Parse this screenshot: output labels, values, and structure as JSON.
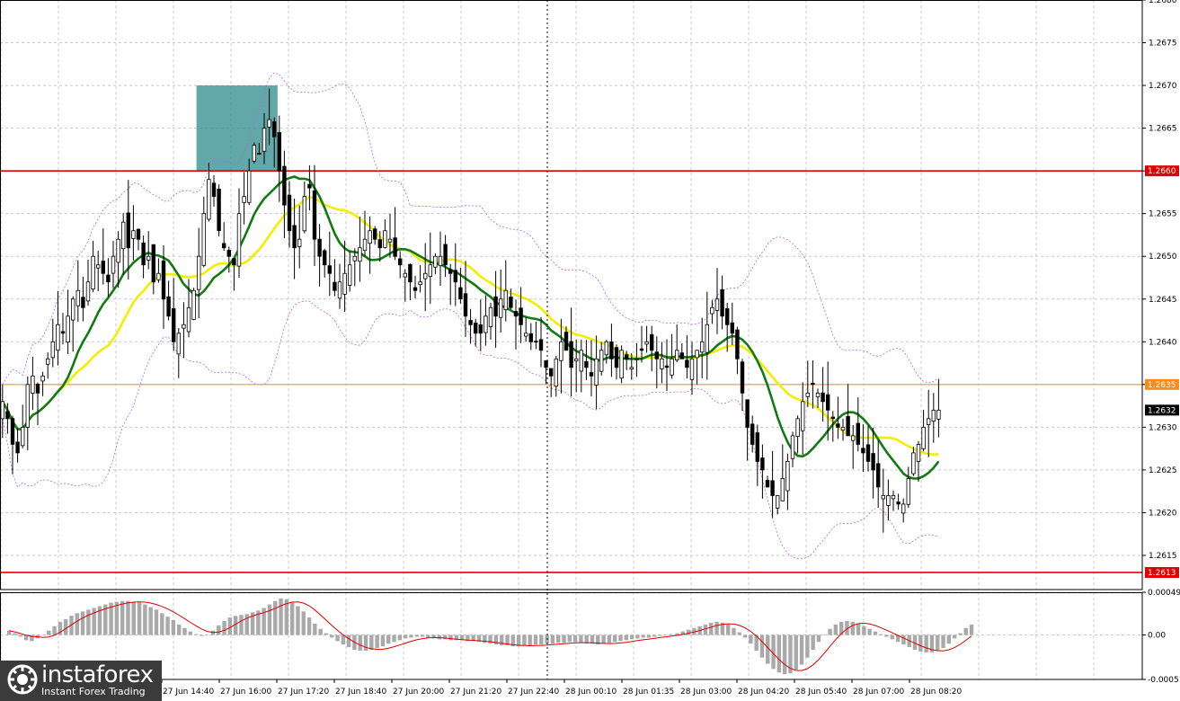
{
  "chart_data": [
    {
      "type": "candlestick",
      "title": "",
      "ylim": [
        1.2611,
        1.268
      ],
      "y_ticks": [
        "1.2680",
        "1.2675",
        "1.2670",
        "1.2665",
        "1.2660",
        "1.2655",
        "1.2650",
        "1.2645",
        "1.2640",
        "1.2635",
        "1.2630",
        "1.2625",
        "1.2620",
        "1.2615"
      ],
      "x_tick_labels": [
        "27 Jun 14:40",
        "27 Jun 16:00",
        "27 Jun 17:20",
        "27 Jun 18:40",
        "27 Jun 20:00",
        "27 Jun 21:20",
        "27 Jun 22:40",
        "28 Jun 00:10",
        "28 Jun 01:35",
        "28 Jun 03:00",
        "28 Jun 04:20",
        "28 Jun 05:40",
        "28 Jun 07:00",
        "28 Jun 08:20"
      ],
      "grid": true,
      "horizontal_levels": [
        {
          "value": 1.266,
          "label": "1.2660",
          "color": "#e00000"
        },
        {
          "value": 1.2613,
          "label": "1.2613",
          "color": "#e00000"
        },
        {
          "value": 1.2635,
          "label": "1.2635",
          "color": "#ff8c1a"
        }
      ],
      "current_price": {
        "value": 1.2632,
        "label": "1.2632"
      },
      "highlight_zone": {
        "x_from": 0.172,
        "x_to": 0.243,
        "y_from": 1.266,
        "y_to": 1.267,
        "color": "#2e8b8b"
      },
      "close": [
        1.2633,
        1.2631,
        1.2628,
        1.2627,
        1.263,
        1.2635,
        1.2636,
        1.2634,
        1.2636,
        1.2638,
        1.264,
        1.2642,
        1.2641,
        1.2643,
        1.2645,
        1.2646,
        1.2644,
        1.2647,
        1.265,
        1.2649,
        1.2648,
        1.2647,
        1.265,
        1.2652,
        1.2654,
        1.2651,
        1.2653,
        1.2652,
        1.2649,
        1.265,
        1.2647,
        1.2648,
        1.2645,
        1.2643,
        1.264,
        1.2641,
        1.2642,
        1.2644,
        1.2646,
        1.265,
        1.2655,
        1.2659,
        1.2657,
        1.2653,
        1.2651,
        1.265,
        1.2649,
        1.2655,
        1.2657,
        1.266,
        1.2663,
        1.2662,
        1.2665,
        1.2666,
        1.2664,
        1.266,
        1.2656,
        1.2653,
        1.2651,
        1.2652,
        1.2657,
        1.2658,
        1.2652,
        1.265,
        1.2649,
        1.2648,
        1.2646,
        1.2647,
        1.2648,
        1.2649,
        1.265,
        1.2651,
        1.2652,
        1.2653,
        1.2652,
        1.2651,
        1.2653,
        1.2652,
        1.265,
        1.2649,
        1.2648,
        1.2647,
        1.2646,
        1.2647,
        1.2648,
        1.2649,
        1.265,
        1.265,
        1.2649,
        1.2648,
        1.2647,
        1.2645,
        1.2643,
        1.2642,
        1.2641,
        1.2641,
        1.2643,
        1.2644,
        1.2643,
        1.2645,
        1.2646,
        1.2644,
        1.2643,
        1.2642,
        1.2641,
        1.264,
        1.264,
        1.2639,
        1.2637,
        1.2636,
        1.2638,
        1.264,
        1.2639,
        1.2637,
        1.2638,
        1.2639,
        1.2637,
        1.2636,
        1.2638,
        1.2639,
        1.264,
        1.2638,
        1.2637,
        1.2639,
        1.2638,
        1.2637,
        1.2638,
        1.2639,
        1.264,
        1.2639,
        1.2638,
        1.2638,
        1.2637,
        1.2638,
        1.2639,
        1.2638,
        1.2637,
        1.2638,
        1.2639,
        1.264,
        1.2642,
        1.2644,
        1.2645,
        1.2643,
        1.2642,
        1.2641,
        1.2638,
        1.2634,
        1.263,
        1.2628,
        1.2626,
        1.2625,
        1.2623,
        1.2622,
        1.2622,
        1.2624,
        1.2626,
        1.2629,
        1.2631,
        1.2633,
        1.2634,
        1.2635,
        1.2634,
        1.2633,
        1.2632,
        1.2631,
        1.263,
        1.263,
        1.2629,
        1.2629,
        1.2628,
        1.2627,
        1.2626,
        1.2625,
        1.2623,
        1.2622,
        1.2622,
        1.2622,
        1.2621,
        1.2621,
        1.2624,
        1.2627,
        1.2628,
        1.263,
        1.2631,
        1.2632,
        1.2632
      ]
    },
    {
      "type": "histogram",
      "title": "",
      "ylim": [
        -0.00051,
        0.00049
      ],
      "y_ticks": [
        "0.00049",
        "0.00",
        "-0.00051"
      ],
      "values": [
        5e-05,
        2e-05,
        -2e-05,
        -6e-05,
        -7e-05,
        -4e-05,
        0.0,
        5e-05,
        0.0001,
        0.00015,
        0.00018,
        0.00022,
        0.00025,
        0.00027,
        0.00029,
        0.00031,
        0.00033,
        0.00035,
        0.00037,
        0.00038,
        0.00039,
        0.00039,
        0.00038,
        0.00037,
        0.00035,
        0.00032,
        0.00029,
        0.00025,
        0.00021,
        0.00017,
        0.00012,
        8e-05,
        4e-05,
        1e-05,
        -1e-05,
        0.0,
        5e-05,
        0.00011,
        0.00016,
        0.0002,
        0.00022,
        0.00023,
        0.00024,
        0.00026,
        0.00028,
        0.00031,
        0.00035,
        0.00039,
        0.00042,
        0.00041,
        0.00038,
        0.00033,
        0.00027,
        0.0002,
        0.00013,
        7e-05,
        2e-05,
        -3e-05,
        -7e-05,
        -0.00011,
        -0.00014,
        -0.00017,
        -0.00018,
        -0.00018,
        -0.00017,
        -0.00015,
        -0.00013,
        -0.0001,
        -8e-05,
        -6e-05,
        -4e-05,
        -3e-05,
        -2e-05,
        -2e-05,
        -3e-05,
        -4e-05,
        -5e-05,
        -5e-05,
        -6e-05,
        -6e-05,
        -6e-05,
        -7e-05,
        -7e-05,
        -8e-05,
        -9e-05,
        -0.0001,
        -0.00011,
        -0.00012,
        -0.00012,
        -0.00013,
        -0.00013,
        -0.00012,
        -0.00012,
        -0.00011,
        -0.00011,
        -0.0001,
        -0.0001,
        -9e-05,
        -9e-05,
        -8e-05,
        -8e-05,
        -9e-05,
        -0.0001,
        -0.0001,
        -0.00011,
        -0.0001,
        -9e-05,
        -8e-05,
        -7e-05,
        -6e-05,
        -5e-05,
        -4e-05,
        -3e-05,
        -3e-05,
        -2e-05,
        -1e-05,
        0.0,
        1e-05,
        2e-05,
        4e-05,
        6e-05,
        8e-05,
        0.0001,
        0.00012,
        0.00014,
        0.00015,
        0.00014,
        0.00012,
        8e-05,
        3e-05,
        -3e-05,
        -0.0001,
        -0.00018,
        -0.00026,
        -0.00033,
        -0.00039,
        -0.00043,
        -0.00045,
        -0.00044,
        -0.0004,
        -0.00034,
        -0.00026,
        -0.00017,
        -8e-05,
        0.0,
        7e-05,
        0.00012,
        0.00015,
        0.00016,
        0.00015,
        0.00013,
        0.0001,
        7e-05,
        4e-05,
        1e-05,
        -2e-05,
        -5e-05,
        -8e-05,
        -0.00011,
        -0.00014,
        -0.00017,
        -0.00019,
        -0.0002,
        -0.0002,
        -0.00018,
        -0.00015,
        -0.0001,
        -4e-05,
        2e-05,
        8e-05,
        0.00012
      ]
    }
  ],
  "logo": {
    "name": "instaforex",
    "tagline": "Instant Forex Trading"
  }
}
